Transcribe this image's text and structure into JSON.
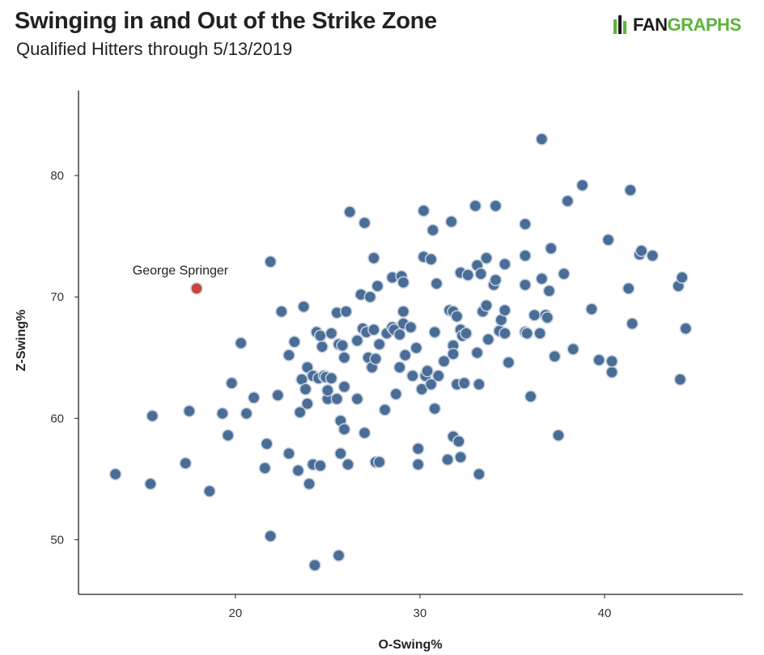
{
  "header": {
    "title": "Swinging in and Out of the Strike Zone",
    "subtitle": "Qualified Hitters through 5/13/2019",
    "logo_fan": "FAN",
    "logo_graphs": "GRAPHS"
  },
  "colors": {
    "point": "#4a6d97",
    "point_stroke": "#c7d2df",
    "highlight": "#c9453d",
    "logo_green": "#5db33b",
    "axis": "#222222"
  },
  "chart_data": {
    "type": "scatter",
    "xlabel": "O-Swing%",
    "ylabel": "Z-Swing%",
    "xlim": [
      11.5,
      47.5
    ],
    "ylim": [
      45.5,
      87
    ],
    "xticks": [
      20,
      30,
      40
    ],
    "yticks": [
      50,
      60,
      70,
      80
    ],
    "grid": false,
    "highlight": {
      "label": "George Springer",
      "x": 17.9,
      "y": 70.7
    },
    "series": [
      {
        "points": [
          [
            13.5,
            55.4
          ],
          [
            15.4,
            54.6
          ],
          [
            15.5,
            60.2
          ],
          [
            17.3,
            56.3
          ],
          [
            17.5,
            60.6
          ],
          [
            18.6,
            54.0
          ],
          [
            19.3,
            60.4
          ],
          [
            19.6,
            58.6
          ],
          [
            19.8,
            62.9
          ],
          [
            20.3,
            66.2
          ],
          [
            20.6,
            60.4
          ],
          [
            21.0,
            61.7
          ],
          [
            21.6,
            55.9
          ],
          [
            21.7,
            57.9
          ],
          [
            21.9,
            72.9
          ],
          [
            21.9,
            50.3
          ],
          [
            22.3,
            61.9
          ],
          [
            22.5,
            68.8
          ],
          [
            22.9,
            65.2
          ],
          [
            22.9,
            57.1
          ],
          [
            23.2,
            66.3
          ],
          [
            23.4,
            55.7
          ],
          [
            23.5,
            60.5
          ],
          [
            23.6,
            63.2
          ],
          [
            23.7,
            69.2
          ],
          [
            23.8,
            62.4
          ],
          [
            23.9,
            64.2
          ],
          [
            23.9,
            61.2
          ],
          [
            24.0,
            54.6
          ],
          [
            24.2,
            63.5
          ],
          [
            24.2,
            56.2
          ],
          [
            24.3,
            47.9
          ],
          [
            24.4,
            67.1
          ],
          [
            24.5,
            63.3
          ],
          [
            24.6,
            56.1
          ],
          [
            24.6,
            66.8
          ],
          [
            24.7,
            65.9
          ],
          [
            24.8,
            63.5
          ],
          [
            24.9,
            63.4
          ],
          [
            25.0,
            61.6
          ],
          [
            25.0,
            62.3
          ],
          [
            25.2,
            67.0
          ],
          [
            25.2,
            63.3
          ],
          [
            25.5,
            61.6
          ],
          [
            25.5,
            68.7
          ],
          [
            25.6,
            66.1
          ],
          [
            25.6,
            48.7
          ],
          [
            25.7,
            59.8
          ],
          [
            25.7,
            57.1
          ],
          [
            25.8,
            66.0
          ],
          [
            25.9,
            65.0
          ],
          [
            25.9,
            62.6
          ],
          [
            25.9,
            59.1
          ],
          [
            26.0,
            68.8
          ],
          [
            26.1,
            56.2
          ],
          [
            26.2,
            77.0
          ],
          [
            26.6,
            66.4
          ],
          [
            26.6,
            61.6
          ],
          [
            26.8,
            70.2
          ],
          [
            26.9,
            67.4
          ],
          [
            27.0,
            58.8
          ],
          [
            27.0,
            76.1
          ],
          [
            27.1,
            67.1
          ],
          [
            27.2,
            65.0
          ],
          [
            27.3,
            70.0
          ],
          [
            27.4,
            64.2
          ],
          [
            27.5,
            73.2
          ],
          [
            27.5,
            67.3
          ],
          [
            27.6,
            56.4
          ],
          [
            27.6,
            64.9
          ],
          [
            27.7,
            70.9
          ],
          [
            27.8,
            66.1
          ],
          [
            27.8,
            56.4
          ],
          [
            28.1,
            60.7
          ],
          [
            28.2,
            67.0
          ],
          [
            28.5,
            67.5
          ],
          [
            28.5,
            71.6
          ],
          [
            28.6,
            67.3
          ],
          [
            28.7,
            62.0
          ],
          [
            28.9,
            66.9
          ],
          [
            28.9,
            64.2
          ],
          [
            29.0,
            71.7
          ],
          [
            29.1,
            71.2
          ],
          [
            29.1,
            68.8
          ],
          [
            29.1,
            67.8
          ],
          [
            29.2,
            65.2
          ],
          [
            29.5,
            67.5
          ],
          [
            29.6,
            63.5
          ],
          [
            29.8,
            65.8
          ],
          [
            29.9,
            57.5
          ],
          [
            29.9,
            56.2
          ],
          [
            30.1,
            62.4
          ],
          [
            30.2,
            77.1
          ],
          [
            30.2,
            73.3
          ],
          [
            30.3,
            63.5
          ],
          [
            30.4,
            63.9
          ],
          [
            30.6,
            73.1
          ],
          [
            30.6,
            62.8
          ],
          [
            30.7,
            75.5
          ],
          [
            30.8,
            60.8
          ],
          [
            30.8,
            67.1
          ],
          [
            30.9,
            71.1
          ],
          [
            31.0,
            63.5
          ],
          [
            31.3,
            64.7
          ],
          [
            31.5,
            56.6
          ],
          [
            31.6,
            68.9
          ],
          [
            31.7,
            76.2
          ],
          [
            31.8,
            68.8
          ],
          [
            31.8,
            66.0
          ],
          [
            31.8,
            65.3
          ],
          [
            31.8,
            58.5
          ],
          [
            32.0,
            62.8
          ],
          [
            32.0,
            68.4
          ],
          [
            32.1,
            58.1
          ],
          [
            32.2,
            56.8
          ],
          [
            32.2,
            67.3
          ],
          [
            32.2,
            72.0
          ],
          [
            32.3,
            66.8
          ],
          [
            32.4,
            62.9
          ],
          [
            32.5,
            67.0
          ],
          [
            32.6,
            71.8
          ],
          [
            33.0,
            77.5
          ],
          [
            33.1,
            72.6
          ],
          [
            33.1,
            65.4
          ],
          [
            33.2,
            62.8
          ],
          [
            33.2,
            55.4
          ],
          [
            33.3,
            71.9
          ],
          [
            33.4,
            68.8
          ],
          [
            33.6,
            69.3
          ],
          [
            33.6,
            73.2
          ],
          [
            33.7,
            66.5
          ],
          [
            34.0,
            71.0
          ],
          [
            34.1,
            77.5
          ],
          [
            34.1,
            71.4
          ],
          [
            34.3,
            67.2
          ],
          [
            34.4,
            68.1
          ],
          [
            34.6,
            72.7
          ],
          [
            34.6,
            68.9
          ],
          [
            34.6,
            67.0
          ],
          [
            34.8,
            64.6
          ],
          [
            35.7,
            76.0
          ],
          [
            35.7,
            73.4
          ],
          [
            35.7,
            71.0
          ],
          [
            35.7,
            67.1
          ],
          [
            35.8,
            67.0
          ],
          [
            36.0,
            61.8
          ],
          [
            36.2,
            68.5
          ],
          [
            36.5,
            67.0
          ],
          [
            36.6,
            71.5
          ],
          [
            36.6,
            83.0
          ],
          [
            36.8,
            68.5
          ],
          [
            36.9,
            68.3
          ],
          [
            37.0,
            70.5
          ],
          [
            37.1,
            74.0
          ],
          [
            37.3,
            65.1
          ],
          [
            37.5,
            58.6
          ],
          [
            37.8,
            71.9
          ],
          [
            38.0,
            77.9
          ],
          [
            38.3,
            65.7
          ],
          [
            38.8,
            79.2
          ],
          [
            39.3,
            69.0
          ],
          [
            39.7,
            64.8
          ],
          [
            40.2,
            74.7
          ],
          [
            40.4,
            63.8
          ],
          [
            40.4,
            64.7
          ],
          [
            41.3,
            70.7
          ],
          [
            41.4,
            78.8
          ],
          [
            41.5,
            67.8
          ],
          [
            41.9,
            73.5
          ],
          [
            42.0,
            73.8
          ],
          [
            42.6,
            73.4
          ],
          [
            44.0,
            70.9
          ],
          [
            44.1,
            63.2
          ],
          [
            44.2,
            71.6
          ],
          [
            44.4,
            67.4
          ]
        ]
      }
    ]
  }
}
